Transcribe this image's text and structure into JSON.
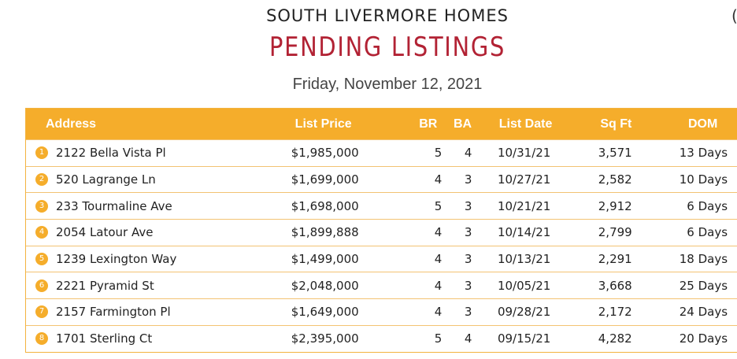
{
  "header": {
    "subtitle": "SOUTH LIVERMORE HOMES",
    "title": "PENDING LISTINGS",
    "date": "Friday, November 12, 2021",
    "edge_char": "("
  },
  "table": {
    "columns": [
      "Address",
      "List Price",
      "BR",
      "BA",
      "List Date",
      "Sq Ft",
      "DOM"
    ],
    "rows": [
      {
        "num": "1",
        "address": "2122 Bella Vista Pl",
        "price": "$1,985,000",
        "br": "5",
        "ba": "4",
        "date": "10/31/21",
        "sqft": "3,571",
        "dom": "13 Days"
      },
      {
        "num": "2",
        "address": "520 Lagrange Ln",
        "price": "$1,699,000",
        "br": "4",
        "ba": "3",
        "date": "10/27/21",
        "sqft": "2,582",
        "dom": "10 Days"
      },
      {
        "num": "3",
        "address": "233 Tourmaline Ave",
        "price": "$1,698,000",
        "br": "5",
        "ba": "3",
        "date": "10/21/21",
        "sqft": "2,912",
        "dom": "6 Days"
      },
      {
        "num": "4",
        "address": "2054 Latour Ave",
        "price": "$1,899,888",
        "br": "4",
        "ba": "3",
        "date": "10/14/21",
        "sqft": "2,799",
        "dom": "6 Days"
      },
      {
        "num": "5",
        "address": "1239 Lexington Way",
        "price": "$1,499,000",
        "br": "4",
        "ba": "3",
        "date": "10/13/21",
        "sqft": "2,291",
        "dom": "18 Days"
      },
      {
        "num": "6",
        "address": "2221 Pyramid St",
        "price": "$2,048,000",
        "br": "4",
        "ba": "3",
        "date": "10/05/21",
        "sqft": "3,668",
        "dom": "25 Days"
      },
      {
        "num": "7",
        "address": "2157 Farmington Pl",
        "price": "$1,649,000",
        "br": "4",
        "ba": "3",
        "date": "09/28/21",
        "sqft": "2,172",
        "dom": "24 Days"
      },
      {
        "num": "8",
        "address": "1701 Sterling Ct",
        "price": "$2,395,000",
        "br": "5",
        "ba": "4",
        "date": "09/15/21",
        "sqft": "4,282",
        "dom": "20 Days"
      }
    ]
  },
  "colors": {
    "accent": "#f5ad2b",
    "title": "#b22234"
  }
}
